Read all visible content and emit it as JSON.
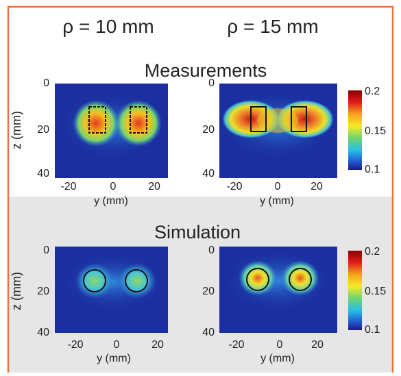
{
  "columns": {
    "left": "ρ = 10 mm",
    "right": "ρ = 15 mm"
  },
  "sections": {
    "top": "Measurements",
    "bottom": "Simulation"
  },
  "axes": {
    "zlabel": "z (mm)",
    "ylabel": "y (mm)",
    "zticks": [
      "0",
      "20",
      "40"
    ],
    "yticks_left": [
      "-20",
      "0",
      "20"
    ],
    "yticks_right": [
      "-20",
      "0",
      "20"
    ]
  },
  "colorbar": {
    "max": "0.2",
    "mid": "0.15",
    "min": "0.1"
  },
  "colors": {
    "frame": "#e8763a",
    "bottom_bg": "#e6e6e6",
    "background_map": "#1b2fa0"
  }
}
